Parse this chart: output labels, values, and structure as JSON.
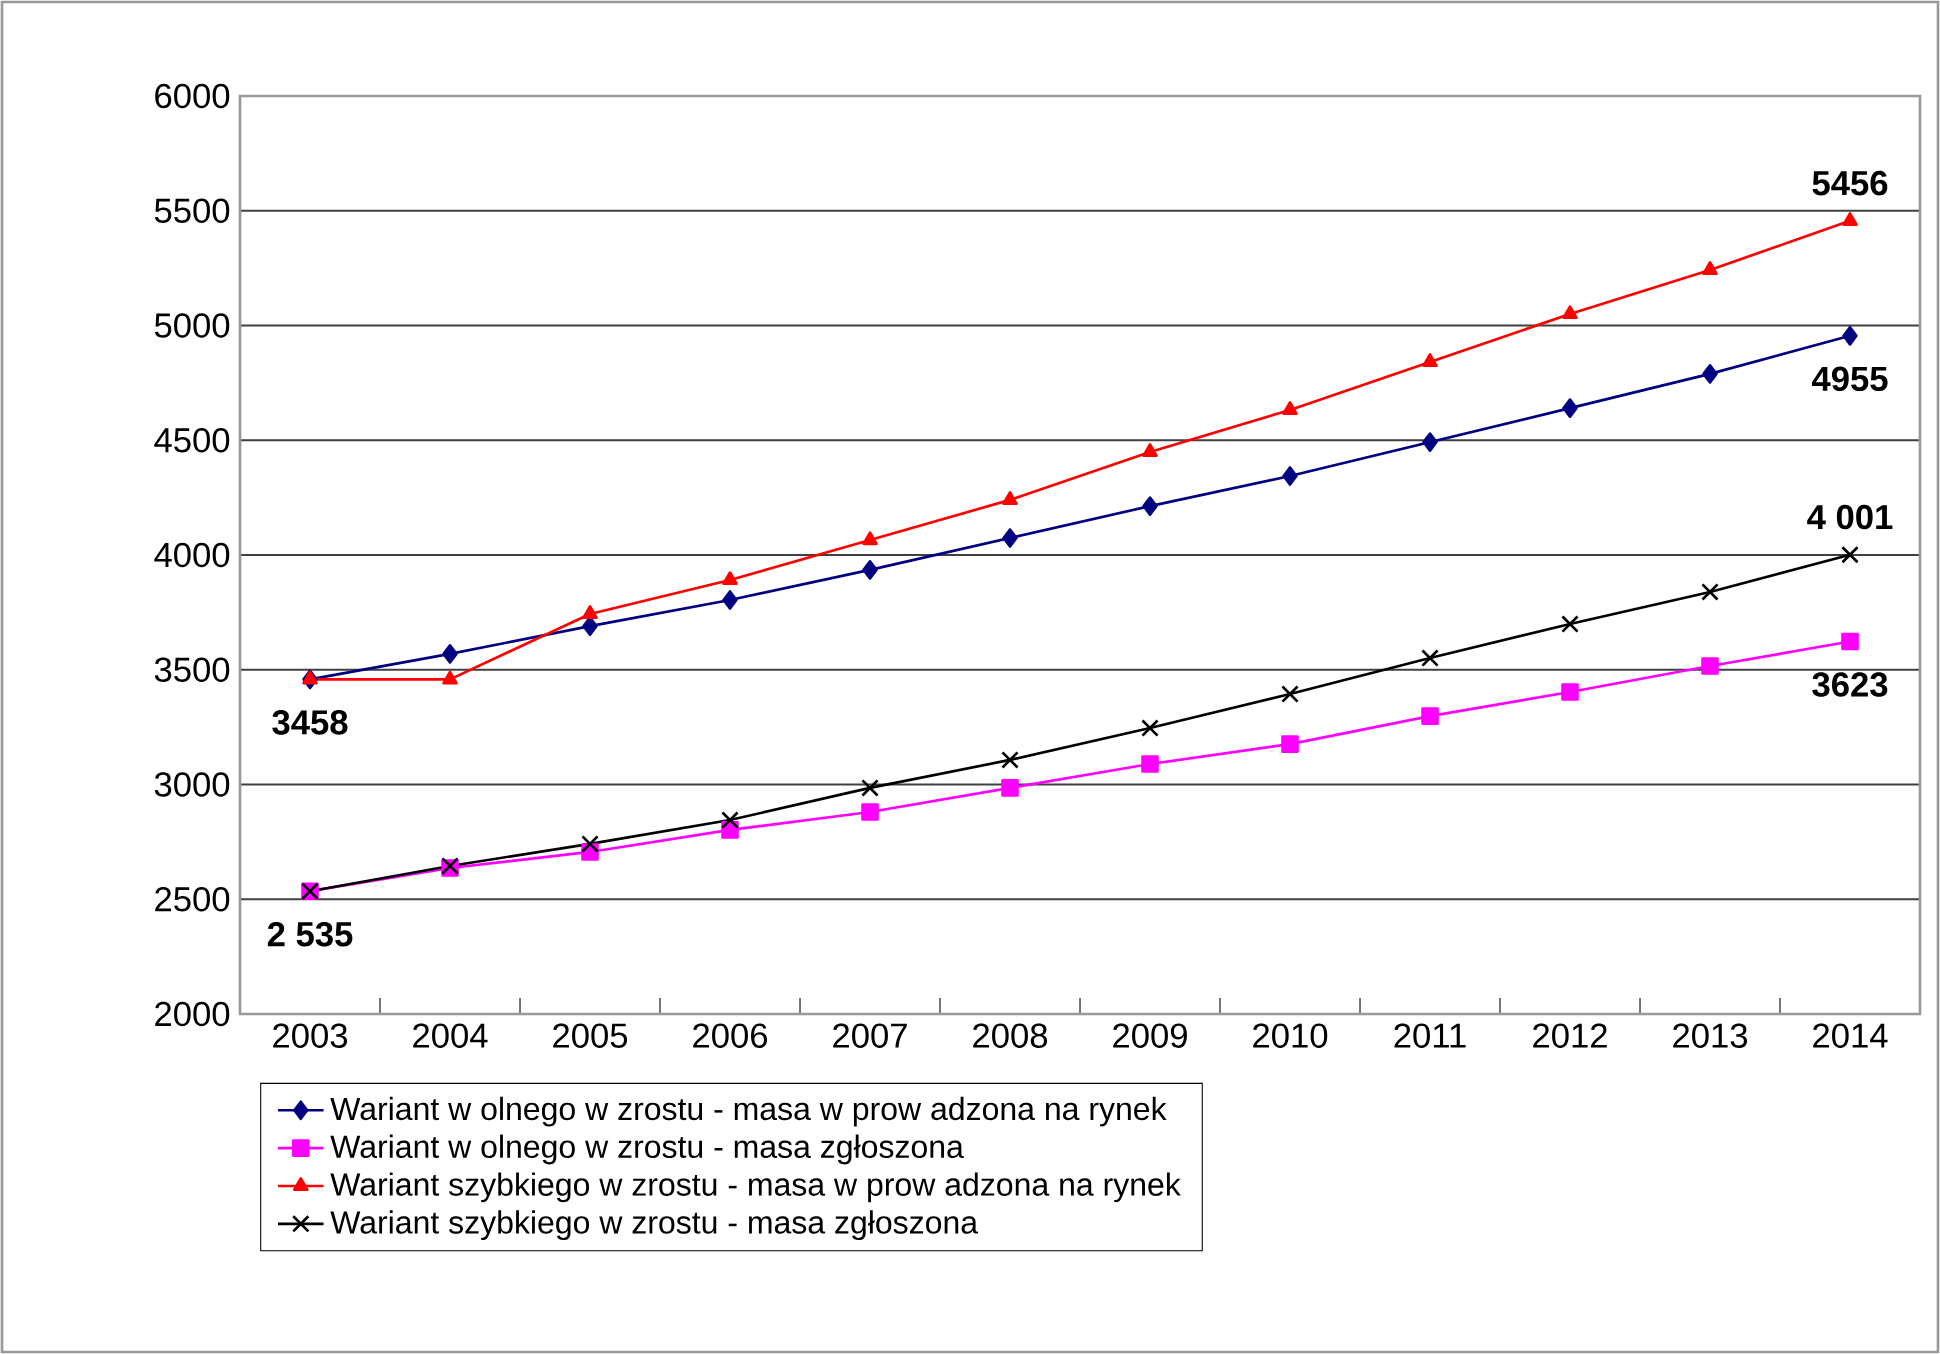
{
  "chart_data": {
    "type": "line",
    "categories": [
      "2003",
      "2004",
      "2005",
      "2006",
      "2007",
      "2008",
      "2009",
      "2010",
      "2011",
      "2012",
      "2013",
      "2014"
    ],
    "series": [
      {
        "name": "Wariant w olnego w zrostu - masa w prow adzona na rynek",
        "color": "#000080",
        "marker": "diamond",
        "values": [
          3458,
          3569,
          3690,
          3804,
          3935,
          4074,
          4213,
          4344,
          4492,
          4640,
          4789,
          4955
        ],
        "value_labels": [
          "3458",
          null,
          null,
          null,
          null,
          null,
          null,
          null,
          null,
          null,
          null,
          "4955"
        ]
      },
      {
        "name": "Wariant w olnego w zrostu - masa zgłoszona",
        "color": "#ff00ff",
        "marker": "square",
        "values": [
          2535,
          2636,
          2706,
          2802,
          2880,
          2985,
          3089,
          3176,
          3298,
          3403,
          3516,
          3623
        ],
        "value_labels": [
          "2 535",
          null,
          null,
          null,
          null,
          null,
          null,
          null,
          null,
          null,
          null,
          "3623"
        ]
      },
      {
        "name": "Wariant szybkiego w zrostu - masa w prow adzona na rynek",
        "color": "#ff0000",
        "marker": "triangle",
        "values": [
          3458,
          3458,
          3743,
          3891,
          4065,
          4240,
          4449,
          4632,
          4841,
          5050,
          5242,
          5456
        ],
        "value_labels": [
          null,
          null,
          null,
          null,
          null,
          null,
          null,
          null,
          null,
          null,
          null,
          "5456"
        ]
      },
      {
        "name": "Wariant szybkiego w zrostu - masa zgłoszona",
        "color": "#000000",
        "marker": "cross",
        "values": [
          2535,
          2645,
          2741,
          2845,
          2985,
          3107,
          3246,
          3394,
          3551,
          3699,
          3839,
          4001
        ],
        "value_labels": [
          null,
          null,
          null,
          null,
          null,
          null,
          null,
          null,
          null,
          null,
          null,
          "4 001"
        ]
      }
    ],
    "ylim": [
      2000,
      6000
    ],
    "yticks": [
      2000,
      2500,
      3000,
      3500,
      4000,
      4500,
      5000,
      5500,
      6000
    ],
    "grid": "y",
    "legend": "bottom"
  }
}
